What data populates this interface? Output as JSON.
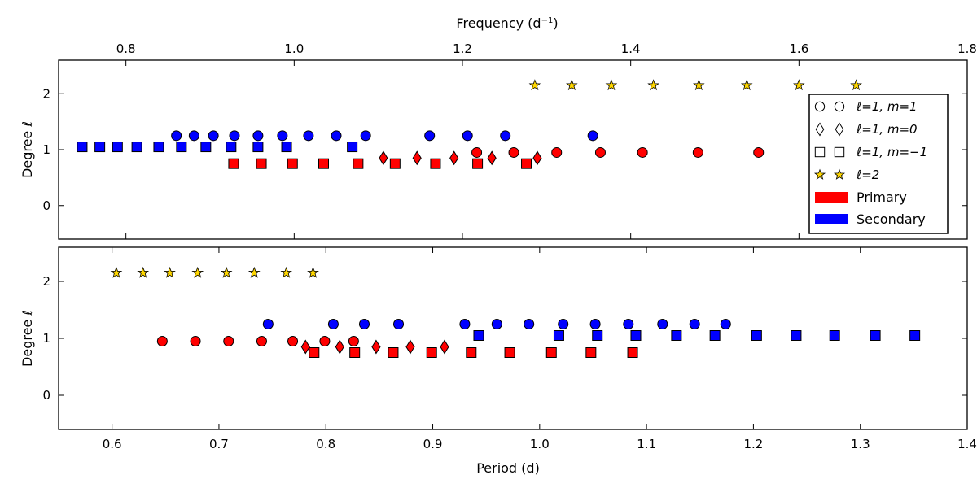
{
  "chart_data": {
    "type": "scatter",
    "top_axis": {
      "label": "Frequency (d⁻¹)",
      "label_parts": [
        "Frequency (d",
        "−1",
        ")"
      ],
      "xlim": [
        0.72,
        1.8
      ],
      "ticks": [
        0.8,
        1.0,
        1.2,
        1.4,
        1.6,
        1.8
      ],
      "tick_labels": [
        "0.8",
        "1.0",
        "1.2",
        "1.4",
        "1.6",
        "1.8"
      ]
    },
    "bottom_axis": {
      "label": "Period (d)",
      "xlim": [
        0.55,
        1.4
      ],
      "ticks": [
        0.6,
        0.7,
        0.8,
        0.9,
        1.0,
        1.1,
        1.2,
        1.3,
        1.4
      ],
      "tick_labels": [
        "0.6",
        "0.7",
        "0.8",
        "0.9",
        "1.0",
        "1.1",
        "1.2",
        "1.3",
        "1.4"
      ]
    },
    "ylabel": "Degree ℓ",
    "ylim": [
      -0.6,
      2.6
    ],
    "yticks": [
      0,
      1,
      2
    ],
    "ytick_labels": [
      "0",
      "1",
      "2"
    ],
    "legend": {
      "position": "right",
      "entries": [
        {
          "marker": "circle",
          "label": "ℓ=1, m=1"
        },
        {
          "marker": "diamond",
          "label": "ℓ=1, m=0"
        },
        {
          "marker": "square",
          "label": "ℓ=1, m=−1"
        },
        {
          "marker": "star",
          "label": "ℓ=2"
        },
        {
          "marker": "patch",
          "color": "#ff0000",
          "label": "Primary"
        },
        {
          "marker": "patch",
          "color": "#0000ff",
          "label": "Secondary"
        }
      ]
    },
    "colors": {
      "primary": "#ff0000",
      "secondary": "#0000ff",
      "l2": "#ffd700"
    },
    "panels": [
      {
        "name": "frequency",
        "series": [
          {
            "name": "Secondary ℓ=1, m=−1",
            "marker": "square",
            "component": "secondary",
            "y": 1.05,
            "x": [
              0.748,
              0.769,
              0.79,
              0.813,
              0.839,
              0.866,
              0.895,
              0.925,
              0.957,
              0.991,
              1.069
            ]
          },
          {
            "name": "Secondary ℓ=1, m=1",
            "marker": "circle",
            "component": "secondary",
            "y": 1.25,
            "x": [
              0.86,
              0.881,
              0.904,
              0.929,
              0.957,
              0.986,
              1.017,
              1.05,
              1.085,
              1.161,
              1.206,
              1.251,
              1.355
            ]
          },
          {
            "name": "Primary ℓ=1, m=−1",
            "marker": "square",
            "component": "primary",
            "y": 0.75,
            "x": [
              0.928,
              0.961,
              0.998,
              1.035,
              1.076,
              1.12,
              1.168,
              1.218,
              1.276
            ]
          },
          {
            "name": "Primary ℓ=1, m=0",
            "marker": "diamond",
            "component": "primary",
            "y": 0.85,
            "x": [
              1.106,
              1.146,
              1.19,
              1.235,
              1.289
            ]
          },
          {
            "name": "Primary ℓ=1, m=1",
            "marker": "circle",
            "component": "primary",
            "y": 0.95,
            "x": [
              1.217,
              1.261,
              1.312,
              1.364,
              1.414,
              1.48,
              1.552
            ]
          },
          {
            "name": "ℓ=2",
            "marker": "star",
            "component": "l2",
            "y": 2.15,
            "x": [
              1.286,
              1.33,
              1.377,
              1.427,
              1.481,
              1.538,
              1.6,
              1.668
            ]
          }
        ]
      },
      {
        "name": "period",
        "series": [
          {
            "name": "ℓ=2",
            "marker": "star",
            "component": "l2",
            "y": 2.15,
            "x": [
              0.604,
              0.629,
              0.654,
              0.68,
              0.707,
              0.733,
              0.763,
              0.788
            ]
          },
          {
            "name": "Primary ℓ=1, m=1",
            "marker": "circle",
            "component": "primary",
            "y": 0.95,
            "x": [
              0.647,
              0.678,
              0.709,
              0.74,
              0.769,
              0.799,
              0.826
            ]
          },
          {
            "name": "Primary ℓ=1, m=0",
            "marker": "diamond",
            "component": "primary",
            "y": 0.85,
            "x": [
              0.781,
              0.813,
              0.847,
              0.879,
              0.911
            ]
          },
          {
            "name": "Primary ℓ=1, m=−1",
            "marker": "square",
            "component": "primary",
            "y": 0.75,
            "x": [
              0.789,
              0.827,
              0.863,
              0.899,
              0.936,
              0.972,
              1.011,
              1.048,
              1.087
            ]
          },
          {
            "name": "Secondary ℓ=1, m=1",
            "marker": "circle",
            "component": "secondary",
            "y": 1.25,
            "x": [
              0.746,
              0.807,
              0.836,
              0.868,
              0.93,
              0.96,
              0.99,
              1.022,
              1.052,
              1.083,
              1.115,
              1.145,
              1.174
            ]
          },
          {
            "name": "Secondary ℓ=1, m=−1",
            "marker": "square",
            "component": "secondary",
            "y": 1.05,
            "x": [
              0.943,
              1.018,
              1.054,
              1.09,
              1.128,
              1.164,
              1.203,
              1.24,
              1.276,
              1.314,
              1.351
            ]
          }
        ]
      }
    ]
  }
}
